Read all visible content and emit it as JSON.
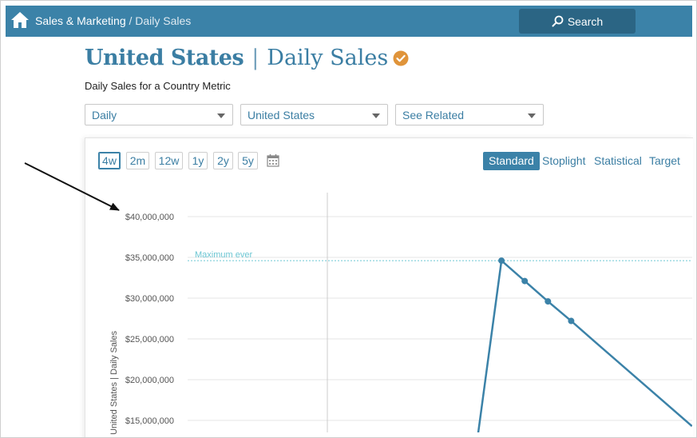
{
  "header": {
    "breadcrumb_section": "Sales & Marketing",
    "breadcrumb_sep": "/",
    "breadcrumb_page": "Daily Sales",
    "search_label": "Search"
  },
  "title": {
    "country": "United States",
    "separator": "|",
    "metric": "Daily Sales"
  },
  "subtitle": "Daily Sales for a Country Metric",
  "filters": {
    "frequency": "Daily",
    "country": "United States",
    "related": "See Related"
  },
  "ranges": [
    "4w",
    "2m",
    "12w",
    "1y",
    "2y",
    "5y"
  ],
  "active_range": "4w",
  "views": [
    "Standard",
    "Stoplight",
    "Statistical",
    "Target"
  ],
  "active_view": "Standard",
  "colors": {
    "brand": "#3b82a8",
    "series": "#3b82a8",
    "max_line": "#6cc6d3",
    "badge": "#e0943a"
  },
  "chart_data": {
    "type": "line",
    "ylabel": "United States | Daily Sales",
    "y_ticks": [
      "$40,000,000",
      "$35,000,000",
      "$30,000,000",
      "$25,000,000",
      "$20,000,000",
      "$15,000,000"
    ],
    "y_tick_values": [
      40000000,
      35000000,
      30000000,
      25000000,
      20000000,
      15000000
    ],
    "ylim": [
      13500000,
      42000000
    ],
    "grid": true,
    "annotation": {
      "label": "Maximum ever",
      "value": 34600000
    },
    "series": [
      {
        "points": [
          {
            "x": 0.0,
            "y": 13500000,
            "marker": false
          },
          {
            "x": 1.0,
            "y": 34600000,
            "marker": true
          },
          {
            "x": 2.0,
            "y": 32100000,
            "marker": true
          },
          {
            "x": 3.0,
            "y": 29600000,
            "marker": true
          },
          {
            "x": 4.0,
            "y": 27200000,
            "marker": true
          },
          {
            "x": 5.0,
            "y": 24700000,
            "marker": false
          },
          {
            "x": 9.2,
            "y": 14300000,
            "marker": false
          }
        ]
      }
    ]
  }
}
